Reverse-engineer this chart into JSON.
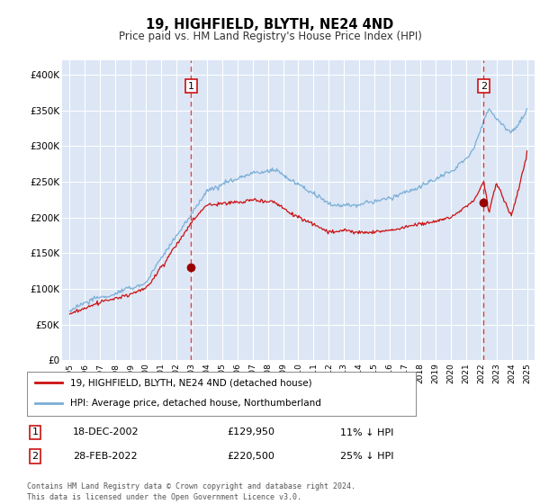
{
  "title": "19, HIGHFIELD, BLYTH, NE24 4ND",
  "subtitle": "Price paid vs. HM Land Registry's House Price Index (HPI)",
  "ylim": [
    0,
    420000
  ],
  "yticks": [
    0,
    50000,
    100000,
    150000,
    200000,
    250000,
    300000,
    350000,
    400000
  ],
  "ytick_labels": [
    "£0",
    "£50K",
    "£100K",
    "£150K",
    "£200K",
    "£250K",
    "£300K",
    "£350K",
    "£400K"
  ],
  "background_color": "#dce6f5",
  "grid_color": "#ffffff",
  "hpi_color": "#7aaed6",
  "price_color": "#cc1111",
  "vline_color": "#dd2222",
  "marker_color": "#990000",
  "annotation_box_color": "#cc1111",
  "sale1_date_num": 2002.96,
  "sale1_price": 129950,
  "sale1_label": "18-DEC-2002",
  "sale1_price_str": "£129,950",
  "sale1_hpi_str": "11% ↓ HPI",
  "sale2_date_num": 2022.16,
  "sale2_price": 220500,
  "sale2_label": "28-FEB-2022",
  "sale2_price_str": "£220,500",
  "sale2_hpi_str": "25% ↓ HPI",
  "legend_line1": "19, HIGHFIELD, BLYTH, NE24 4ND (detached house)",
  "legend_line2": "HPI: Average price, detached house, Northumberland",
  "footer": "Contains HM Land Registry data © Crown copyright and database right 2024.\nThis data is licensed under the Open Government Licence v3.0.",
  "xmin": 1994.5,
  "xmax": 2025.5,
  "xticks": [
    1995,
    1996,
    1997,
    1998,
    1999,
    2000,
    2001,
    2002,
    2003,
    2004,
    2005,
    2006,
    2007,
    2008,
    2009,
    2010,
    2011,
    2012,
    2013,
    2014,
    2015,
    2016,
    2017,
    2018,
    2019,
    2020,
    2021,
    2022,
    2023,
    2024,
    2025
  ]
}
